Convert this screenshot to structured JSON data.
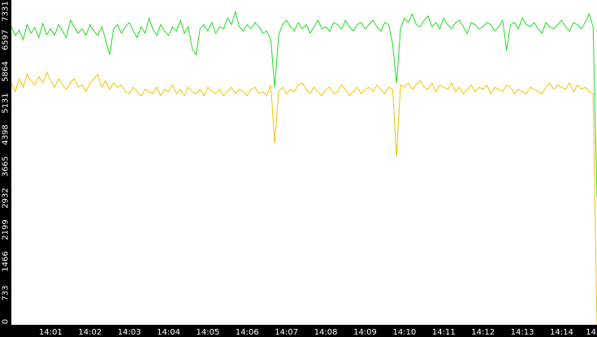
{
  "chart_data": {
    "type": "line",
    "categories": [
      null,
      null,
      null,
      null,
      null,
      null,
      null,
      null,
      null,
      null,
      "14:01",
      null,
      null,
      null,
      null,
      null,
      null,
      null,
      null,
      null,
      "14:02",
      null,
      null,
      null,
      null,
      null,
      null,
      null,
      null,
      null,
      "14:03",
      null,
      null,
      null,
      null,
      null,
      null,
      null,
      null,
      null,
      "14:04",
      null,
      null,
      null,
      null,
      null,
      null,
      null,
      null,
      null,
      "14:05",
      null,
      null,
      null,
      null,
      null,
      null,
      null,
      null,
      null,
      "14:06",
      null,
      null,
      null,
      null,
      null,
      null,
      null,
      null,
      null,
      "14:07",
      null,
      null,
      null,
      null,
      null,
      null,
      null,
      null,
      null,
      "14:08",
      null,
      null,
      null,
      null,
      null,
      null,
      null,
      null,
      null,
      "14:09",
      null,
      null,
      null,
      null,
      null,
      null,
      null,
      null,
      null,
      "14:10",
      null,
      null,
      null,
      null,
      null,
      null,
      null,
      null,
      null,
      "14:11",
      null,
      null,
      null,
      null,
      null,
      null,
      null,
      null,
      null,
      "14:12",
      null,
      null,
      null,
      null,
      null,
      null,
      null,
      null,
      null,
      "14:13",
      null,
      null,
      null,
      null,
      null,
      null,
      null,
      null,
      null,
      "14:14",
      null,
      null,
      null,
      null,
      null,
      null,
      null,
      null,
      "14"
    ],
    "series": [
      {
        "color": "#22dd22",
        "values": [
          6900,
          6700,
          6820,
          6600,
          6950,
          6750,
          6880,
          6650,
          6980,
          6720,
          6850,
          6700,
          6950,
          6800,
          6650,
          7050,
          6900,
          6750,
          6850,
          6700,
          6950,
          6800,
          6700,
          6900,
          6600,
          6250,
          6850,
          6950,
          6750,
          6900,
          7000,
          6800,
          6650,
          6900,
          6750,
          7100,
          6850,
          6700,
          6950,
          6800,
          6700,
          6900,
          6800,
          7050,
          6750,
          6900,
          6400,
          6250,
          6850,
          6950,
          6800,
          7000,
          6750,
          6900,
          6850,
          7100,
          6950,
          7250,
          6900,
          6800,
          6950,
          6850,
          7000,
          6900,
          6750,
          6800,
          6600,
          5500,
          6700,
          6950,
          7050,
          6900,
          6800,
          7000,
          6850,
          6950,
          6750,
          6900,
          7050,
          6850,
          6900,
          6800,
          7000,
          6950,
          6850,
          7050,
          6900,
          6800,
          6950,
          7000,
          6850,
          6950,
          7050,
          6900,
          6800,
          7000,
          6950,
          6500,
          5600,
          6850,
          7100,
          7000,
          7200,
          6950,
          6900,
          7050,
          7150,
          6900,
          7000,
          6850,
          7100,
          6950,
          6850,
          7000,
          7050,
          6900,
          6750,
          7000,
          6950,
          6850,
          6900,
          7000,
          6950,
          6800,
          6900,
          7050,
          6350,
          6950,
          7000,
          6850,
          7100,
          6950,
          6900,
          7000,
          6850,
          6750,
          7000,
          6900,
          6850,
          6950,
          7050,
          6900,
          6800,
          7000,
          6950,
          6850,
          7000,
          7200,
          6900,
          2950
        ]
      },
      {
        "color": "#f5c400",
        "values": [
          5600,
          5400,
          5700,
          5500,
          5800,
          5650,
          5550,
          5750,
          5600,
          5850,
          5650,
          5500,
          5700,
          5550,
          5450,
          5600,
          5700,
          5500,
          5550,
          5400,
          5600,
          5700,
          5800,
          5500,
          5650,
          5450,
          5600,
          5500,
          5550,
          5400,
          5350,
          5500,
          5400,
          5300,
          5450,
          5400,
          5350,
          5500,
          5300,
          5450,
          5400,
          5550,
          5350,
          5450,
          5300,
          5500,
          5400,
          5350,
          5450,
          5300,
          5500,
          5400,
          5350,
          5450,
          5300,
          5400,
          5500,
          5350,
          5450,
          5400,
          5300,
          5450,
          5500,
          5350,
          5400,
          5300,
          5550,
          4200,
          5400,
          5500,
          5350,
          5450,
          5400,
          5550,
          5600,
          5450,
          5350,
          5500,
          5400,
          5300,
          5450,
          5500,
          5350,
          5400,
          5550,
          5450,
          5300,
          5400,
          5500,
          5350,
          5450,
          5500,
          5400,
          5550,
          5450,
          5350,
          5500,
          5450,
          3900,
          5550,
          5500,
          5600,
          5450,
          5550,
          5650,
          5500,
          5450,
          5600,
          5400,
          5550,
          5500,
          5450,
          5600,
          5400,
          5500,
          5350,
          5450,
          5550,
          5400,
          5500,
          5450,
          5550,
          5350,
          5500,
          5450,
          5400,
          5550,
          5500,
          5350,
          5450,
          5400,
          5350,
          5500,
          5450,
          5400,
          5350,
          5500,
          5600,
          5450,
          5550,
          5500,
          5450,
          5600,
          5400,
          5550,
          5450,
          5500,
          5400,
          5350,
          0
        ]
      }
    ],
    "ylim": [
      0,
      7520
    ],
    "yticks": [
      0,
      733,
      1466,
      2199,
      2932,
      3665,
      4398,
      5131,
      5864,
      6597,
      7331
    ]
  }
}
